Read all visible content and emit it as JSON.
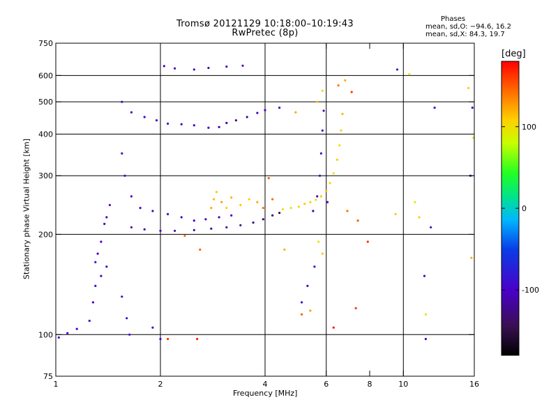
{
  "chart_data": {
    "type": "scatter",
    "title": "Tromsø 20121129 10:18:00–10:19:43",
    "subtitle": "RwPretec (8p)",
    "annotation": {
      "heading": "Phases",
      "line_o": "mean, sd,O: −94.6, 16.2",
      "line_x": "mean, sd,X:  84.3, 19.7"
    },
    "xlabel": "Frequency [MHz]",
    "ylabel": "Stationary phase Virtual Height [km]",
    "xscale": "log",
    "yscale": "log",
    "xlim": [
      1,
      16
    ],
    "ylim": [
      75,
      750
    ],
    "xticks": [
      1,
      2,
      4,
      6,
      8,
      10,
      16
    ],
    "xtick_labels": [
      "1",
      "2",
      "4",
      "6",
      "8",
      "10",
      "16"
    ],
    "xgrid": [
      2,
      4,
      6,
      10
    ],
    "yticks": [
      75,
      100,
      200,
      300,
      400,
      500,
      600,
      750
    ],
    "ytick_labels": [
      "75",
      "100",
      "200",
      "300",
      "400",
      "500",
      "600",
      "750"
    ],
    "ygrid": [
      100,
      200,
      300,
      400,
      500,
      600
    ],
    "grid": true,
    "colorbar": {
      "title": "[deg]",
      "range": [
        -180,
        180
      ],
      "ticks": [
        100,
        0,
        -100
      ],
      "tick_labels": [
        "100",
        "0",
        "-100"
      ]
    },
    "series": [
      {
        "values": [
          [
            1.02,
            98,
            -100
          ],
          [
            1.08,
            101,
            -98
          ],
          [
            1.15,
            104,
            -102
          ],
          [
            1.25,
            110,
            -95
          ],
          [
            1.28,
            125,
            -100
          ],
          [
            1.3,
            165,
            -98
          ],
          [
            1.32,
            175,
            -102
          ],
          [
            1.35,
            190,
            -100
          ],
          [
            1.38,
            215,
            -97
          ],
          [
            1.4,
            225,
            -104
          ],
          [
            1.43,
            245,
            -99
          ],
          [
            1.3,
            140,
            -95
          ],
          [
            1.35,
            150,
            -100
          ],
          [
            1.4,
            160,
            -96
          ],
          [
            1.55,
            130,
            -92
          ],
          [
            1.6,
            112,
            -96
          ],
          [
            1.63,
            100,
            -100
          ],
          [
            1.9,
            105,
            -99
          ],
          [
            2.0,
            97,
            -95
          ],
          [
            1.55,
            500,
            -95
          ],
          [
            1.65,
            465,
            -100
          ],
          [
            1.8,
            450,
            -98
          ],
          [
            1.95,
            440,
            -102
          ],
          [
            2.1,
            430,
            -99
          ],
          [
            2.3,
            428,
            -101
          ],
          [
            2.5,
            425,
            -98
          ],
          [
            2.75,
            418,
            -100
          ],
          [
            2.95,
            420,
            -108
          ],
          [
            3.1,
            432,
            -118
          ],
          [
            3.3,
            440,
            -125
          ],
          [
            3.55,
            450,
            -110
          ],
          [
            3.8,
            463,
            -105
          ],
          [
            4.0,
            472,
            -100
          ],
          [
            4.4,
            480,
            -105
          ],
          [
            1.65,
            210,
            -108
          ],
          [
            1.8,
            207,
            -110
          ],
          [
            2.0,
            205,
            -112
          ],
          [
            2.2,
            205,
            -114
          ],
          [
            2.5,
            206,
            -116
          ],
          [
            2.8,
            208,
            -118
          ],
          [
            3.1,
            210,
            -120
          ],
          [
            3.4,
            213,
            -122
          ],
          [
            3.7,
            217,
            -124
          ],
          [
            3.95,
            222,
            -128
          ],
          [
            4.2,
            228,
            -135
          ],
          [
            4.4,
            232,
            -140
          ],
          [
            1.55,
            350,
            -100
          ],
          [
            1.58,
            300,
            -98
          ],
          [
            1.65,
            260,
            -100
          ],
          [
            1.75,
            240,
            -97
          ],
          [
            1.9,
            235,
            -102
          ],
          [
            2.1,
            230,
            -99
          ],
          [
            2.3,
            225,
            -96
          ],
          [
            2.5,
            220,
            -101
          ],
          [
            2.7,
            222,
            -100
          ],
          [
            2.95,
            225,
            -103
          ],
          [
            3.2,
            228,
            -98
          ],
          [
            2.05,
            640,
            -100
          ],
          [
            2.2,
            630,
            -97
          ],
          [
            2.5,
            625,
            -102
          ],
          [
            2.75,
            632,
            -98
          ],
          [
            3.1,
            638,
            -100
          ],
          [
            3.45,
            642,
            -103
          ],
          [
            5.5,
            235,
            -110
          ],
          [
            5.65,
            260,
            -104
          ],
          [
            5.75,
            300,
            -100
          ],
          [
            5.8,
            350,
            -98
          ],
          [
            5.85,
            410,
            -96
          ],
          [
            5.9,
            470,
            -100
          ],
          [
            6.05,
            250,
            -102
          ],
          [
            5.1,
            125,
            -90
          ],
          [
            5.3,
            140,
            -100
          ],
          [
            5.55,
            160,
            -95
          ],
          [
            9.6,
            625,
            -100
          ],
          [
            11.5,
            150,
            -95
          ],
          [
            11.6,
            97,
            -100
          ],
          [
            12.0,
            210,
            -92
          ],
          [
            12.3,
            480,
            -98
          ],
          [
            15.6,
            300,
            -100
          ],
          [
            15.8,
            480,
            -96
          ]
        ]
      },
      {
        "values": [
          [
            2.8,
            240,
            120
          ],
          [
            2.85,
            255,
            115
          ],
          [
            2.9,
            268,
            110
          ],
          [
            3.0,
            250,
            125
          ],
          [
            3.1,
            240,
            105
          ],
          [
            3.2,
            258,
            118
          ],
          [
            3.4,
            245,
            112
          ],
          [
            3.6,
            255,
            108
          ],
          [
            3.8,
            250,
            122
          ],
          [
            3.95,
            240,
            140
          ],
          [
            4.2,
            255,
            145
          ],
          [
            4.5,
            238,
            100
          ],
          [
            4.75,
            240,
            95
          ],
          [
            5.0,
            242,
            105
          ],
          [
            5.2,
            247,
            110
          ],
          [
            5.4,
            250,
            108
          ],
          [
            5.6,
            254,
            100
          ],
          [
            5.8,
            260,
            112
          ],
          [
            6.0,
            270,
            115
          ],
          [
            6.15,
            285,
            105
          ],
          [
            6.3,
            305,
            98
          ],
          [
            6.45,
            335,
            110
          ],
          [
            6.55,
            370,
            102
          ],
          [
            6.62,
            410,
            108
          ],
          [
            6.68,
            460,
            118
          ],
          [
            6.5,
            560,
            140
          ],
          [
            6.8,
            580,
            120
          ],
          [
            7.1,
            535,
            160
          ],
          [
            5.65,
            500,
            118
          ],
          [
            5.85,
            540,
            100
          ],
          [
            4.9,
            465,
            122
          ],
          [
            5.1,
            115,
            150
          ],
          [
            5.4,
            118,
            125
          ],
          [
            5.85,
            175,
            110
          ],
          [
            5.7,
            190,
            95
          ],
          [
            6.3,
            105,
            170
          ],
          [
            7.3,
            120,
            160
          ],
          [
            7.4,
            220,
            150
          ],
          [
            7.9,
            190,
            165
          ],
          [
            2.6,
            180,
            150
          ],
          [
            2.35,
            198,
            140
          ],
          [
            2.1,
            97,
            165
          ],
          [
            2.55,
            97,
            170
          ],
          [
            4.1,
            295,
            150
          ],
          [
            4.55,
            180,
            120
          ],
          [
            6.9,
            235,
            140
          ],
          [
            9.5,
            230,
            110
          ],
          [
            10.4,
            605,
            105
          ],
          [
            10.8,
            250,
            95
          ],
          [
            11.1,
            225,
            105
          ],
          [
            11.6,
            115,
            95
          ],
          [
            15.4,
            550,
            110
          ],
          [
            15.9,
            390,
            95
          ],
          [
            15.7,
            170,
            120
          ]
        ]
      }
    ]
  }
}
